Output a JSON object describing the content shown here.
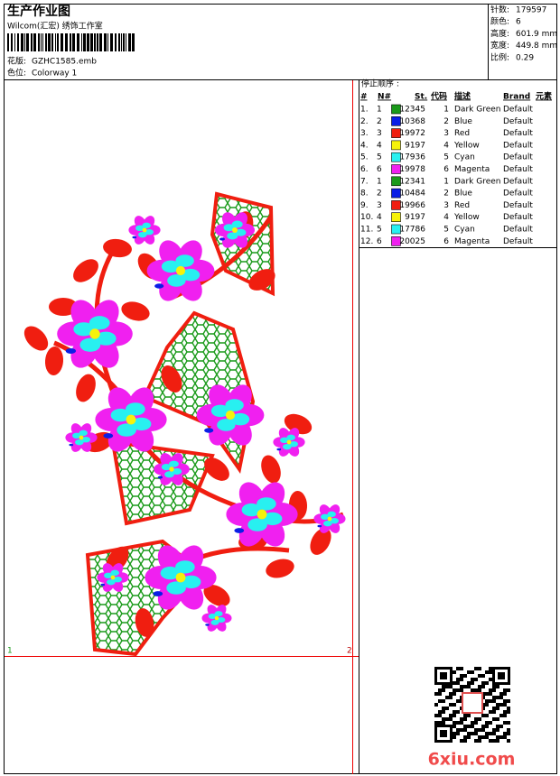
{
  "header": {
    "title": "生产作业图",
    "studio": "Wilcom(汇宏) 绣饰工作室",
    "design_label": "花版:",
    "design": "GZHC1585.emb",
    "colorway_label": "色位:",
    "colorway": "Colorway 1"
  },
  "stats": [
    {
      "label": "针数:",
      "value": "179597"
    },
    {
      "label": "颜色:",
      "value": "6"
    },
    {
      "label": "高度:",
      "value": "601.9 mm"
    },
    {
      "label": "宽度:",
      "value": "449.8 mm"
    },
    {
      "label": "比例:",
      "value": "0.29"
    }
  ],
  "stop_sequence": {
    "title": "停止顺序 :",
    "columns": [
      "#",
      "N#",
      "St.",
      "代码",
      "描述",
      "Brand",
      "元素"
    ],
    "rows": [
      [
        "1.",
        "1",
        "#1a9a1a",
        "12345",
        "1",
        "Dark Green",
        "Default"
      ],
      [
        "2.",
        "2",
        "#0a1ee6",
        "10368",
        "2",
        "Blue",
        "Default"
      ],
      [
        "3.",
        "3",
        "#f01e10",
        "19972",
        "3",
        "Red",
        "Default"
      ],
      [
        "4.",
        "4",
        "#f6f20a",
        "9197",
        "4",
        "Yellow",
        "Default"
      ],
      [
        "5.",
        "5",
        "#28f0f0",
        "17936",
        "5",
        "Cyan",
        "Default"
      ],
      [
        "6.",
        "6",
        "#f020f0",
        "19978",
        "6",
        "Magenta",
        "Default"
      ],
      [
        "7.",
        "1",
        "#1a9a1a",
        "12341",
        "1",
        "Dark Green",
        "Default"
      ],
      [
        "8.",
        "2",
        "#0a1ee6",
        "10484",
        "2",
        "Blue",
        "Default"
      ],
      [
        "9.",
        "3",
        "#f01e10",
        "19966",
        "3",
        "Red",
        "Default"
      ],
      [
        "10.",
        "4",
        "#f6f20a",
        "9197",
        "4",
        "Yellow",
        "Default"
      ],
      [
        "11.",
        "5",
        "#28f0f0",
        "17786",
        "5",
        "Cyan",
        "Default"
      ],
      [
        "12.",
        "6",
        "#f020f0",
        "20025",
        "6",
        "Magenta",
        "Default"
      ]
    ]
  },
  "frame_labels": [
    "1",
    "2"
  ],
  "watermark": "6xiu.com"
}
